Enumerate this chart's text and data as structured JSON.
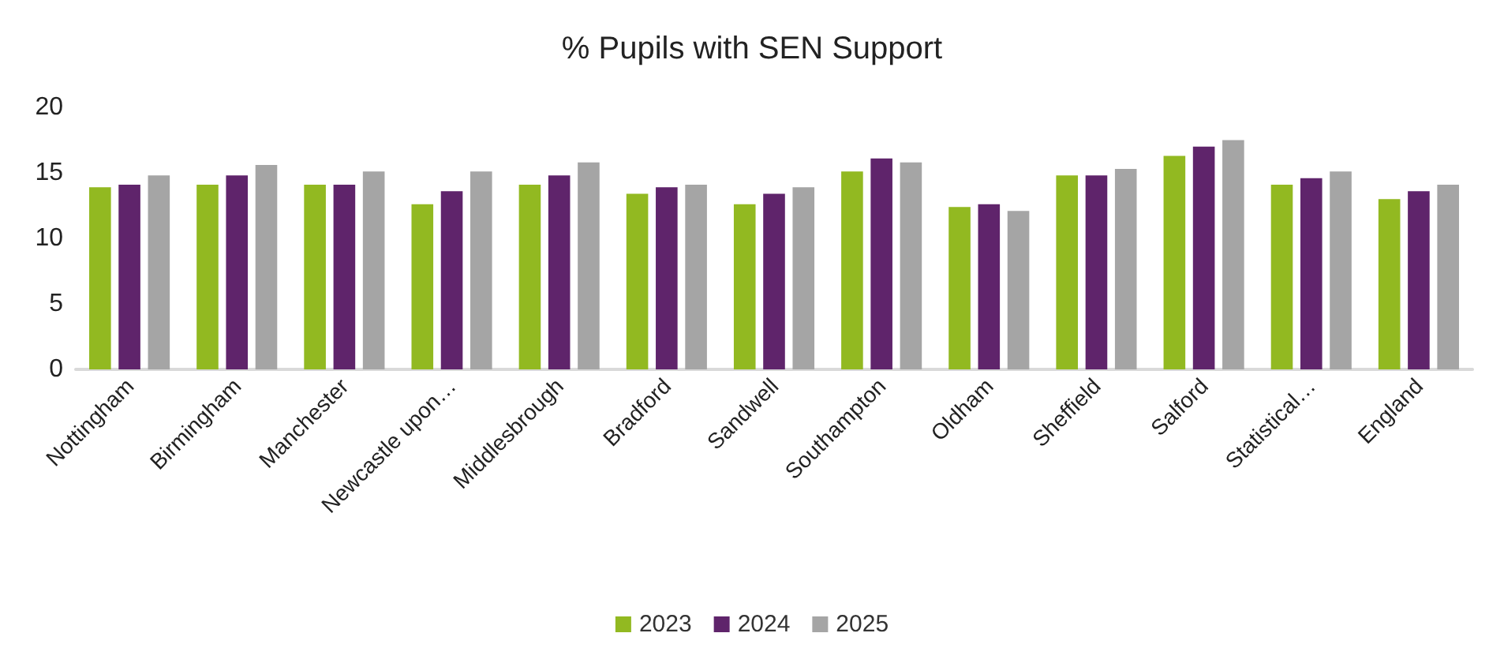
{
  "chart_data": {
    "type": "bar",
    "title": "% Pupils with SEN Support",
    "categories": [
      "Nottingham",
      "Birmingham",
      "Manchester",
      "Newcastle upon…",
      "Middlesbrough",
      "Bradford",
      "Sandwell",
      "Southampton",
      "Oldham",
      "Sheffield",
      "Salford",
      "Statistical…",
      "England"
    ],
    "series": [
      {
        "name": "2023",
        "color": "#92b921",
        "values": [
          13.9,
          14.1,
          14.1,
          12.6,
          14.1,
          13.4,
          12.6,
          15.1,
          12.4,
          14.8,
          16.3,
          14.1,
          13.0
        ]
      },
      {
        "name": "2024",
        "color": "#5f246b",
        "values": [
          14.1,
          14.8,
          14.1,
          13.6,
          14.8,
          13.9,
          13.4,
          16.1,
          12.6,
          14.8,
          17.0,
          14.6,
          13.6
        ]
      },
      {
        "name": "2025",
        "color": "#a5a5a5",
        "values": [
          14.8,
          15.6,
          15.1,
          15.1,
          15.8,
          14.1,
          13.9,
          15.8,
          12.1,
          15.3,
          17.5,
          15.1,
          14.1
        ]
      }
    ],
    "ylim": [
      0,
      20
    ],
    "yticks": [
      0,
      5,
      10,
      15,
      20
    ],
    "grid": false,
    "legend": "bottom"
  }
}
